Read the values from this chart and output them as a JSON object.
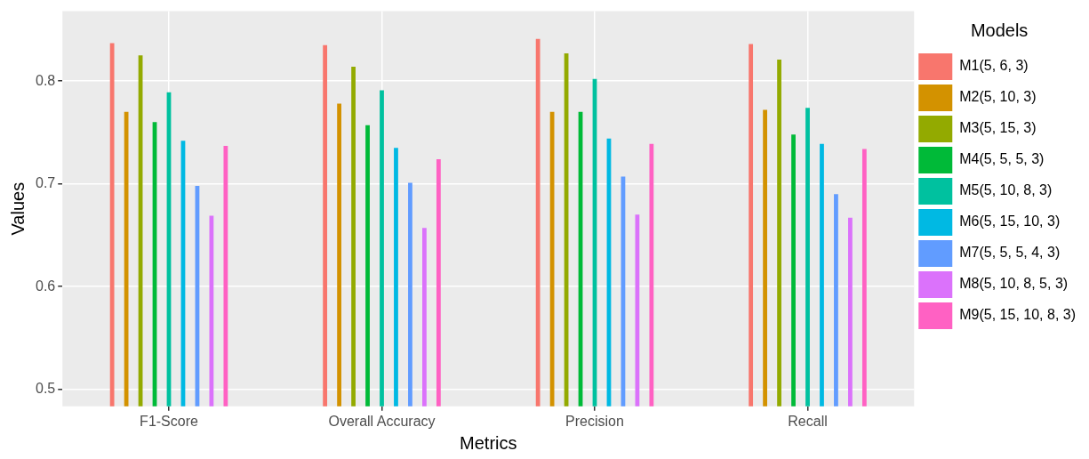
{
  "chart_data": {
    "type": "bar",
    "xlabel": "Metrics",
    "ylabel": "Values",
    "legend_title": "Models",
    "legend": "right",
    "grid": true,
    "categories": [
      "F1-Score",
      "Overall Accuracy",
      "Precision",
      "Recall"
    ],
    "ylim": [
      0.4835,
      0.868
    ],
    "yticks": [
      0.5,
      0.6,
      0.7,
      0.8
    ],
    "series": [
      {
        "name": "M1(5, 6, 3)",
        "color": "#f8766d",
        "values": [
          0.837,
          0.835,
          0.841,
          0.836
        ]
      },
      {
        "name": "M2(5, 10, 3)",
        "color": "#d39200",
        "values": [
          0.77,
          0.778,
          0.77,
          0.772
        ]
      },
      {
        "name": "M3(5, 15, 3)",
        "color": "#93aa00",
        "values": [
          0.825,
          0.814,
          0.827,
          0.821
        ]
      },
      {
        "name": "M4(5, 5, 5, 3)",
        "color": "#00ba38",
        "values": [
          0.76,
          0.757,
          0.77,
          0.748
        ]
      },
      {
        "name": "M5(5, 10, 8, 3)",
        "color": "#00c19f",
        "values": [
          0.789,
          0.791,
          0.802,
          0.774
        ]
      },
      {
        "name": "M6(5, 15, 10, 3)",
        "color": "#00b9e3",
        "values": [
          0.742,
          0.735,
          0.744,
          0.739
        ]
      },
      {
        "name": "M7(5, 5, 5, 4, 3)",
        "color": "#619cff",
        "values": [
          0.698,
          0.701,
          0.707,
          0.69
        ]
      },
      {
        "name": "M8(5, 10, 8, 5, 3)",
        "color": "#db72fb",
        "values": [
          0.669,
          0.657,
          0.67,
          0.667
        ]
      },
      {
        "name": "M9(5, 15, 10, 8, 3)",
        "color": "#ff61c3",
        "values": [
          0.737,
          0.724,
          0.739,
          0.734
        ]
      }
    ]
  }
}
